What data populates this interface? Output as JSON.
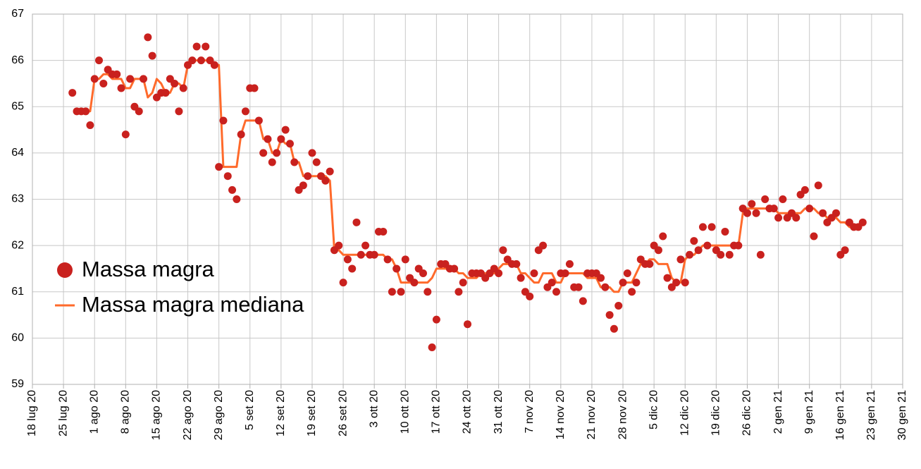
{
  "chart_data": {
    "type": "scatter-line",
    "xlim": [
      "2020-07-18",
      "2021-01-30"
    ],
    "xticks": [
      {
        "value": "2020-07-18",
        "label": "18 lug 20"
      },
      {
        "value": "2020-07-25",
        "label": "25 lug 20"
      },
      {
        "value": "2020-08-01",
        "label": "1 ago 20"
      },
      {
        "value": "2020-08-08",
        "label": "8 ago 20"
      },
      {
        "value": "2020-08-15",
        "label": "15 ago 20"
      },
      {
        "value": "2020-08-22",
        "label": "22 ago 20"
      },
      {
        "value": "2020-08-29",
        "label": "29 ago 20"
      },
      {
        "value": "2020-09-05",
        "label": "5 set 20"
      },
      {
        "value": "2020-09-12",
        "label": "12 set 20"
      },
      {
        "value": "2020-09-19",
        "label": "19 set 20"
      },
      {
        "value": "2020-09-26",
        "label": "26 set 20"
      },
      {
        "value": "2020-10-03",
        "label": "3 ott 20"
      },
      {
        "value": "2020-10-10",
        "label": "10 ott 20"
      },
      {
        "value": "2020-10-17",
        "label": "17 ott 20"
      },
      {
        "value": "2020-10-24",
        "label": "24 ott 20"
      },
      {
        "value": "2020-10-31",
        "label": "31 ott 20"
      },
      {
        "value": "2020-11-07",
        "label": "7 nov 20"
      },
      {
        "value": "2020-11-14",
        "label": "14 nov 20"
      },
      {
        "value": "2020-11-21",
        "label": "21 nov 20"
      },
      {
        "value": "2020-11-28",
        "label": "28 nov 20"
      },
      {
        "value": "2020-12-05",
        "label": "5 dic 20"
      },
      {
        "value": "2020-12-12",
        "label": "12 dic 20"
      },
      {
        "value": "2020-12-19",
        "label": "19 dic 20"
      },
      {
        "value": "2020-12-26",
        "label": "26 dic 20"
      },
      {
        "value": "2021-01-02",
        "label": "2 gen 21"
      },
      {
        "value": "2021-01-09",
        "label": "9 gen 21"
      },
      {
        "value": "2021-01-16",
        "label": "16 gen 21"
      },
      {
        "value": "2021-01-23",
        "label": "23 gen 21"
      },
      {
        "value": "2021-01-30",
        "label": "30 gen 21"
      }
    ],
    "ylim": [
      59,
      67
    ],
    "yticks": [
      59,
      60,
      61,
      62,
      63,
      64,
      65,
      66,
      67
    ],
    "grid": true,
    "legend": "left",
    "x": [
      "2020-07-27",
      "2020-07-28",
      "2020-07-29",
      "2020-07-30",
      "2020-07-31",
      "2020-08-01",
      "2020-08-02",
      "2020-08-03",
      "2020-08-04",
      "2020-08-05",
      "2020-08-06",
      "2020-08-07",
      "2020-08-08",
      "2020-08-09",
      "2020-08-10",
      "2020-08-11",
      "2020-08-12",
      "2020-08-13",
      "2020-08-14",
      "2020-08-15",
      "2020-08-16",
      "2020-08-17",
      "2020-08-18",
      "2020-08-19",
      "2020-08-20",
      "2020-08-21",
      "2020-08-22",
      "2020-08-23",
      "2020-08-24",
      "2020-08-25",
      "2020-08-26",
      "2020-08-27",
      "2020-08-28",
      "2020-08-29",
      "2020-08-30",
      "2020-08-31",
      "2020-09-01",
      "2020-09-02",
      "2020-09-03",
      "2020-09-04",
      "2020-09-05",
      "2020-09-06",
      "2020-09-07",
      "2020-09-08",
      "2020-09-09",
      "2020-09-10",
      "2020-09-11",
      "2020-09-12",
      "2020-09-13",
      "2020-09-14",
      "2020-09-15",
      "2020-09-16",
      "2020-09-17",
      "2020-09-18",
      "2020-09-19",
      "2020-09-20",
      "2020-09-21",
      "2020-09-22",
      "2020-09-23",
      "2020-09-24",
      "2020-09-25",
      "2020-09-26",
      "2020-09-27",
      "2020-09-28",
      "2020-09-29",
      "2020-09-30",
      "2020-10-01",
      "2020-10-02",
      "2020-10-03",
      "2020-10-04",
      "2020-10-05",
      "2020-10-06",
      "2020-10-07",
      "2020-10-08",
      "2020-10-09",
      "2020-10-10",
      "2020-10-11",
      "2020-10-12",
      "2020-10-13",
      "2020-10-14",
      "2020-10-15",
      "2020-10-16",
      "2020-10-17",
      "2020-10-18",
      "2020-10-19",
      "2020-10-20",
      "2020-10-21",
      "2020-10-22",
      "2020-10-23",
      "2020-10-24",
      "2020-10-25",
      "2020-10-26",
      "2020-10-27",
      "2020-10-28",
      "2020-10-29",
      "2020-10-30",
      "2020-10-31",
      "2020-11-01",
      "2020-11-02",
      "2020-11-03",
      "2020-11-04",
      "2020-11-05",
      "2020-11-06",
      "2020-11-07",
      "2020-11-08",
      "2020-11-09",
      "2020-11-10",
      "2020-11-11",
      "2020-11-12",
      "2020-11-13",
      "2020-11-14",
      "2020-11-15",
      "2020-11-16",
      "2020-11-17",
      "2020-11-18",
      "2020-11-19",
      "2020-11-20",
      "2020-11-21",
      "2020-11-22",
      "2020-11-23",
      "2020-11-24",
      "2020-11-25",
      "2020-11-26",
      "2020-11-27",
      "2020-11-28",
      "2020-11-29",
      "2020-11-30",
      "2020-12-01",
      "2020-12-02",
      "2020-12-03",
      "2020-12-04",
      "2020-12-05",
      "2020-12-06",
      "2020-12-07",
      "2020-12-08",
      "2020-12-09",
      "2020-12-10",
      "2020-12-11",
      "2020-12-12",
      "2020-12-13",
      "2020-12-14",
      "2020-12-15",
      "2020-12-16",
      "2020-12-17",
      "2020-12-18",
      "2020-12-19",
      "2020-12-20",
      "2020-12-21",
      "2020-12-22",
      "2020-12-23",
      "2020-12-24",
      "2020-12-25",
      "2020-12-26",
      "2020-12-27",
      "2020-12-28",
      "2020-12-29",
      "2020-12-30",
      "2020-12-31",
      "2021-01-01",
      "2021-01-02",
      "2021-01-03",
      "2021-01-04",
      "2021-01-05",
      "2021-01-06",
      "2021-01-07",
      "2021-01-08",
      "2021-01-09",
      "2021-01-10",
      "2021-01-11",
      "2021-01-12",
      "2021-01-13",
      "2021-01-14",
      "2021-01-15",
      "2021-01-16",
      "2021-01-17",
      "2021-01-18",
      "2021-01-19",
      "2021-01-20",
      "2021-01-21"
    ],
    "series": [
      {
        "name": "Massa magra",
        "kind": "points",
        "color": "#c9211e",
        "values": [
          65.3,
          64.9,
          64.9,
          64.9,
          64.6,
          65.6,
          66.0,
          65.5,
          65.8,
          65.7,
          65.7,
          65.4,
          64.4,
          65.6,
          65.0,
          64.9,
          65.6,
          66.5,
          66.1,
          65.2,
          65.3,
          65.3,
          65.6,
          65.5,
          64.9,
          65.4,
          65.9,
          66.0,
          66.3,
          66.0,
          66.3,
          66.0,
          65.9,
          63.7,
          64.7,
          63.5,
          63.2,
          63.0,
          64.4,
          64.9,
          65.4,
          65.4,
          64.7,
          64.0,
          64.3,
          63.8,
          64.0,
          64.3,
          64.5,
          64.2,
          63.8,
          63.2,
          63.3,
          63.5,
          64.0,
          63.8,
          63.5,
          63.4,
          63.6,
          61.9,
          62.0,
          61.2,
          61.7,
          61.5,
          62.5,
          61.8,
          62.0,
          61.8,
          61.8,
          62.3,
          62.3,
          61.7,
          61.0,
          61.5,
          61.0,
          61.7,
          61.3,
          61.2,
          61.5,
          61.4,
          61.0,
          59.8,
          60.4,
          61.6,
          61.6,
          61.5,
          61.5,
          61.0,
          61.2,
          60.3,
          61.4,
          61.4,
          61.4,
          61.3,
          61.4,
          61.5,
          61.4,
          61.9,
          61.7,
          61.6,
          61.6,
          61.3,
          61.0,
          60.9,
          61.4,
          61.9,
          62.0,
          61.1,
          61.2,
          61.0,
          61.4,
          61.4,
          61.6,
          61.1,
          61.1,
          60.8,
          61.4,
          61.4,
          61.4,
          61.3,
          61.1,
          60.5,
          60.2,
          60.7,
          61.2,
          61.4,
          61.0,
          61.2,
          61.7,
          61.6,
          61.6,
          62.0,
          61.9,
          62.2,
          61.3,
          61.1,
          61.2,
          61.7,
          61.2,
          61.8,
          62.1,
          61.9,
          62.4,
          62.0,
          62.4,
          61.9,
          61.8,
          62.3,
          61.8,
          62.0,
          62.0,
          62.8,
          62.7,
          62.9,
          62.7,
          61.8,
          63.0,
          62.8,
          62.8,
          62.6,
          63.0,
          62.6,
          62.7,
          62.6,
          63.1,
          63.2,
          62.8,
          62.2,
          63.3,
          62.7,
          62.5,
          62.6,
          62.7,
          61.8,
          61.9,
          62.5,
          62.4,
          62.4,
          62.5
        ]
      },
      {
        "name": "Massa magra mediana",
        "kind": "line",
        "color": "#ff6a2b",
        "values": [
          null,
          64.9,
          64.9,
          64.9,
          64.9,
          65.6,
          65.6,
          65.7,
          65.7,
          65.6,
          65.6,
          65.6,
          65.4,
          65.4,
          65.6,
          65.6,
          65.6,
          65.2,
          65.3,
          65.6,
          65.5,
          65.3,
          65.3,
          65.5,
          65.5,
          65.4,
          65.9,
          66.0,
          66.0,
          66.0,
          66.0,
          66.0,
          65.9,
          65.9,
          63.7,
          63.7,
          63.7,
          63.7,
          64.4,
          64.7,
          64.7,
          64.7,
          64.7,
          64.3,
          64.3,
          64.0,
          64.0,
          64.3,
          64.2,
          64.2,
          63.8,
          63.8,
          63.5,
          63.5,
          63.5,
          63.5,
          63.5,
          63.5,
          63.4,
          61.9,
          61.9,
          61.8,
          61.8,
          61.8,
          61.8,
          61.8,
          61.8,
          61.8,
          61.8,
          61.8,
          61.8,
          61.7,
          61.7,
          61.5,
          61.2,
          61.2,
          61.2,
          61.2,
          61.2,
          61.2,
          61.2,
          61.3,
          61.5,
          61.5,
          61.5,
          61.5,
          61.5,
          61.4,
          61.4,
          61.3,
          61.3,
          61.3,
          61.4,
          61.4,
          61.4,
          61.4,
          61.5,
          61.6,
          61.6,
          61.6,
          61.6,
          61.4,
          61.4,
          61.3,
          61.2,
          61.2,
          61.4,
          61.4,
          61.4,
          61.2,
          61.2,
          61.4,
          61.4,
          61.4,
          61.4,
          61.4,
          61.3,
          61.3,
          61.3,
          61.1,
          61.1,
          61.1,
          61.0,
          61.0,
          61.2,
          61.2,
          61.2,
          61.4,
          61.6,
          61.6,
          61.7,
          61.7,
          61.6,
          61.6,
          61.6,
          61.3,
          61.2,
          61.2,
          61.7,
          61.8,
          61.8,
          61.9,
          62.0,
          62.0,
          62.0,
          62.0,
          62.0,
          62.0,
          62.0,
          62.0,
          62.0,
          62.7,
          62.8,
          62.8,
          62.8,
          62.8,
          62.8,
          62.8,
          62.8,
          62.7,
          62.7,
          62.7,
          62.7,
          62.7,
          62.7,
          62.8,
          62.8,
          62.8,
          62.7,
          62.7,
          62.6,
          62.6,
          62.6,
          62.5,
          62.5,
          62.4,
          62.4,
          62.4,
          62.5
        ]
      }
    ]
  }
}
